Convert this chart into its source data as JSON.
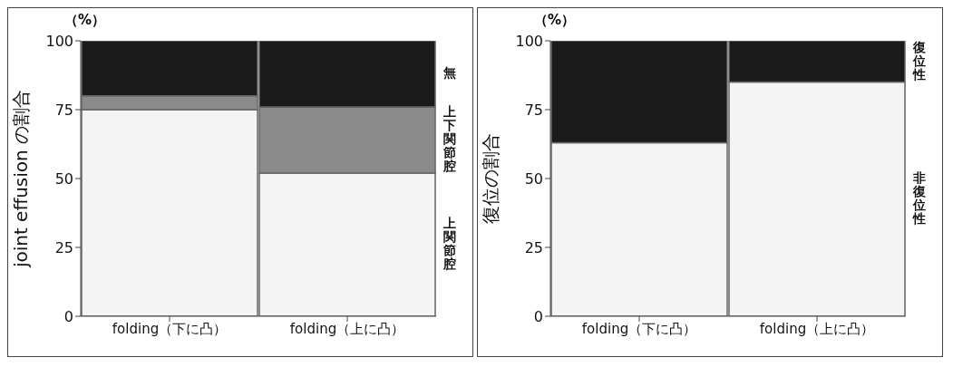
{
  "chart_data": [
    {
      "type": "bar",
      "stacked": true,
      "ylabel": "joint effusion の割合",
      "annotations": [
        "（%）"
      ],
      "categories": [
        "folding（下に凸）",
        "folding（上に凸）"
      ],
      "ylim": [
        0,
        100
      ],
      "yticks": [
        0,
        25,
        50,
        75,
        100
      ],
      "grid": false,
      "legend": false,
      "series": [
        {
          "name": "上関節腔",
          "color": "#f4f4f4",
          "values": [
            75,
            52
          ]
        },
        {
          "name": "上下関節腔",
          "color": "#8a8a8a",
          "values": [
            5,
            24
          ]
        },
        {
          "name": "無",
          "color": "#1a1a1a",
          "values": [
            20,
            24
          ]
        }
      ]
    },
    {
      "type": "bar",
      "stacked": true,
      "ylabel": "復位の割合",
      "annotations": [
        "（%）"
      ],
      "categories": [
        "folding（下に凸）",
        "folding（上に凸）"
      ],
      "ylim": [
        0,
        100
      ],
      "yticks": [
        0,
        25,
        50,
        75,
        100
      ],
      "grid": false,
      "legend": false,
      "series": [
        {
          "name": "非復位性",
          "color": "#f4f4f4",
          "values": [
            63,
            85
          ]
        },
        {
          "name": "復位性",
          "color": "#1a1a1a",
          "values": [
            37,
            15
          ]
        }
      ]
    }
  ]
}
